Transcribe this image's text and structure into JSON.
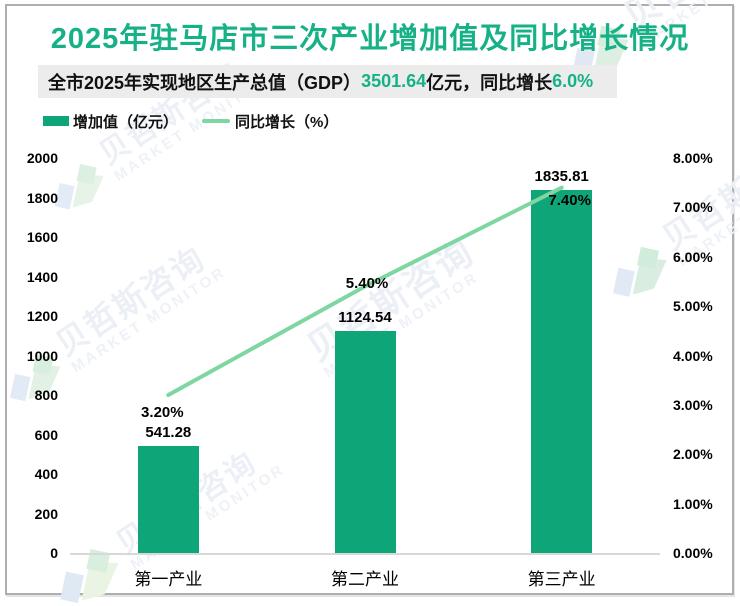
{
  "title": "2025年驻马店市三次产业增加值及同比增长情况",
  "subtitle": {
    "part1": "全市2025年实现地区生产总值（GDP）",
    "highlight1": "3501.64",
    "part2": "亿元，同比增长",
    "highlight2": "6.0%"
  },
  "legend": {
    "bar_label": "增加值（亿元）",
    "line_label": "同比增长（%）"
  },
  "watermark": {
    "text_cn": "贝哲斯咨询",
    "text_en": "MARKET MONITOR"
  },
  "colors": {
    "accent_green": "#16B186",
    "bar": "#0EA678",
    "line": "#7FD6A1",
    "banner_bg": "#ECECEC",
    "baseline": "#D8D8D8"
  },
  "chart_data": {
    "type": "bar+line",
    "title": "2025年驻马店市三次产业增加值及同比增长情况",
    "categories": [
      "第一产业",
      "第二产业",
      "第三产业"
    ],
    "series": [
      {
        "name": "增加值（亿元）",
        "type": "bar",
        "axis": "left",
        "values": [
          541.28,
          1124.54,
          1835.81
        ],
        "labels": [
          "541.28",
          "1124.54",
          "1835.81"
        ]
      },
      {
        "name": "同比增长（%）",
        "type": "line",
        "axis": "right",
        "values": [
          3.2,
          5.4,
          7.4
        ],
        "labels": [
          "3.20%",
          "5.40%",
          "7.40%"
        ]
      }
    ],
    "y_left": {
      "min": 0,
      "max": 2000,
      "step": 200,
      "ticks": [
        "2000",
        "1800",
        "1600",
        "1400",
        "1200",
        "1000",
        "800",
        "600",
        "400",
        "200",
        "0"
      ]
    },
    "y_right": {
      "min": 0,
      "max": 8,
      "step": 1,
      "ticks": [
        "8.00%",
        "7.00%",
        "6.00%",
        "5.00%",
        "4.00%",
        "3.00%",
        "2.00%",
        "1.00%",
        "0.00%"
      ]
    },
    "grid": false,
    "legend_position": "top-left"
  }
}
